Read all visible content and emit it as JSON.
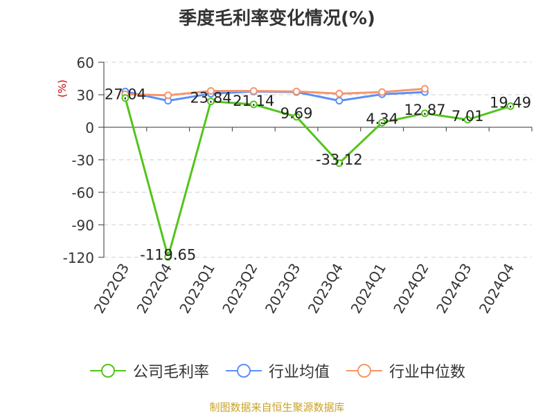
{
  "chart_data": {
    "type": "line",
    "title": "季度毛利率变化情况(%)",
    "ylabel": "(%)",
    "xlabel": "",
    "categories": [
      "2022Q3",
      "2022Q4",
      "2023Q1",
      "2023Q2",
      "2023Q3",
      "2023Q4",
      "2024Q1",
      "2024Q2",
      "2024Q3",
      "2024Q4"
    ],
    "ylim": [
      -120,
      60
    ],
    "yticks": [
      "60",
      "30",
      "0",
      "-30",
      "-60",
      "-90",
      "-120"
    ],
    "grid": true,
    "legend_position": "bottom",
    "series": [
      {
        "name": "公司毛利率",
        "color": "#52c41a",
        "values": [
          27.04,
          -119.65,
          23.84,
          21.14,
          9.69,
          -33.12,
          4.34,
          12.87,
          7.01,
          19.49
        ],
        "labels": [
          "27.04",
          "-119.65",
          "23.84",
          "21.14",
          "9.69",
          "-33.12",
          "4.34",
          "12.87",
          "7.01",
          "19.49"
        ]
      },
      {
        "name": "行业均值",
        "color": "#5b8ff9",
        "values": [
          33,
          24.5,
          31,
          33,
          32.5,
          24.5,
          30.5,
          32.5,
          null,
          null
        ]
      },
      {
        "name": "行业中位数",
        "color": "#f6956b",
        "values": [
          30.5,
          29.5,
          33.5,
          33.5,
          33,
          31,
          32.5,
          35.5,
          null,
          null
        ]
      }
    ]
  },
  "footer": {
    "source": "制图数据来自恒生聚源数据库"
  }
}
